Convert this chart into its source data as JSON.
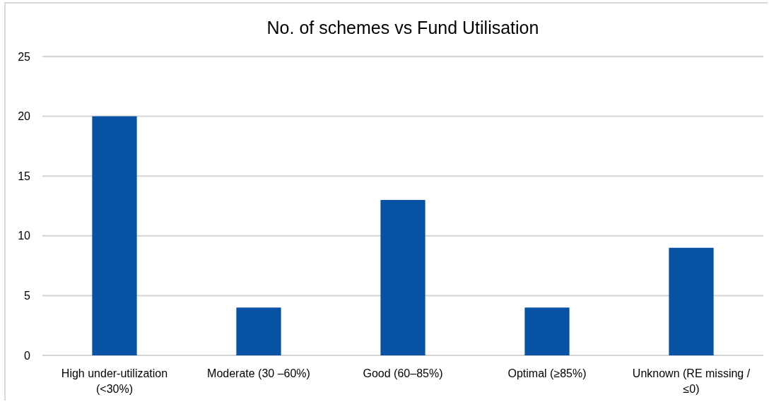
{
  "chart_data": {
    "type": "bar",
    "title": "No. of schemes vs Fund Utilisation",
    "categories": [
      "High under-utilization (<30%)",
      "Moderate (30 –60%)",
      "Good (60–85%)",
      "Optimal (≥85%)",
      "Unknown (RE missing / ≤0)"
    ],
    "values": [
      20,
      4,
      13,
      4,
      9
    ],
    "color": "#0852a3",
    "ylim": [
      0,
      25
    ],
    "yticks": [
      0,
      5,
      10,
      15,
      20,
      25
    ],
    "grid": "y"
  }
}
